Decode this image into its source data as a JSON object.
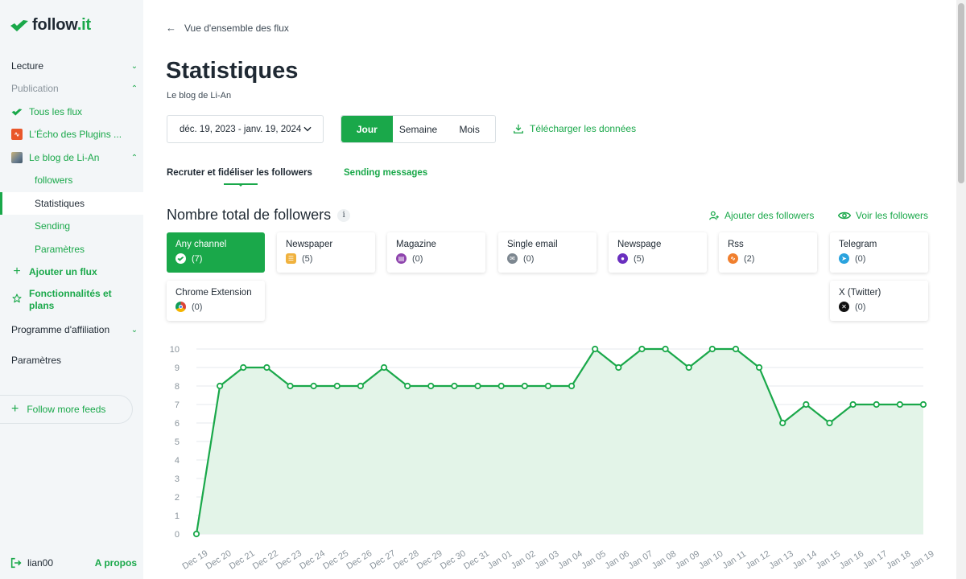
{
  "brand": {
    "logo_main": "follow",
    "logo_dot": ".it"
  },
  "sidebar": {
    "items": [
      {
        "label": "Lecture"
      },
      {
        "label": "Publication"
      },
      {
        "label": "Tous les flux"
      },
      {
        "label": "L'Écho des Plugins ..."
      },
      {
        "label": "Le blog de Li-An"
      },
      {
        "label": "followers"
      },
      {
        "label": "Statistiques"
      },
      {
        "label": "Sending"
      },
      {
        "label": "Paramètres"
      },
      {
        "label": "Ajouter un flux"
      },
      {
        "label": "Fonctionnalités et plans"
      },
      {
        "label": "Programme d'affiliation"
      },
      {
        "label": "Paramètres"
      }
    ],
    "follow_more": "Follow more feeds",
    "user": "lian00",
    "about": "A propos"
  },
  "header": {
    "back_link": "Vue d'ensemble des flux",
    "title": "Statistiques",
    "subtitle": "Le blog de Li-An"
  },
  "controls": {
    "date_range": "déc. 19, 2023 - janv. 19, 2024",
    "periods": [
      "Jour",
      "Semaine",
      "Mois"
    ],
    "download": "Télécharger les données"
  },
  "tabs": [
    "Recruter et fidéliser les followers",
    "Sending messages"
  ],
  "section": {
    "title": "Nombre total de followers",
    "info": "i",
    "add_followers": "Ajouter des followers",
    "view_followers": "Voir les followers"
  },
  "channels": [
    {
      "name": "Any channel",
      "count": "(7)",
      "icon": "follow-it-icon",
      "color": "#1aa84a"
    },
    {
      "name": "Newspaper",
      "count": "(5)",
      "icon": "newspaper-icon",
      "color": "#f0b23e"
    },
    {
      "name": "Magazine",
      "count": "(0)",
      "icon": "magazine-icon",
      "color": "#8e44ad"
    },
    {
      "name": "Single email",
      "count": "(0)",
      "icon": "email-icon",
      "color": "#7d8790"
    },
    {
      "name": "Newspage",
      "count": "(5)",
      "icon": "globe-icon",
      "color": "#6a2fbf"
    },
    {
      "name": "Rss",
      "count": "(2)",
      "icon": "rss-icon",
      "color": "#f07f2e"
    },
    {
      "name": "Telegram",
      "count": "(0)",
      "icon": "telegram-icon",
      "color": "#2aa3de"
    },
    {
      "name": "Chrome Extension",
      "count": "(0)",
      "icon": "chrome-icon",
      "color": "#db4437"
    },
    {
      "name": "X (Twitter)",
      "count": "(0)",
      "icon": "x-icon",
      "color": "#111111"
    }
  ],
  "chart_data": {
    "type": "area",
    "x": [
      "Dec 19",
      "Dec 20",
      "Dec 21",
      "Dec 22",
      "Dec 23",
      "Dec 24",
      "Dec 25",
      "Dec 26",
      "Dec 27",
      "Dec 28",
      "Dec 29",
      "Dec 30",
      "Dec 31",
      "Jan 01",
      "Jan 02",
      "Jan 03",
      "Jan 04",
      "Jan 05",
      "Jan 06",
      "Jan 07",
      "Jan 08",
      "Jan 09",
      "Jan 10",
      "Jan 11",
      "Jan 12",
      "Jan 13",
      "Jan 14",
      "Jan 15",
      "Jan 16",
      "Jan 17",
      "Jan 18",
      "Jan 19"
    ],
    "values": [
      0,
      8,
      9,
      9,
      8,
      8,
      8,
      8,
      9,
      8,
      8,
      8,
      8,
      8,
      8,
      8,
      8,
      10,
      9,
      10,
      10,
      9,
      10,
      10,
      9,
      6,
      7,
      6,
      7,
      7,
      7,
      7
    ],
    "ylim": [
      0,
      10
    ],
    "yticks": [
      0,
      1,
      2,
      3,
      4,
      5,
      6,
      7,
      8,
      9,
      10
    ],
    "grid": true,
    "line_color": "#1aa84a",
    "fill_color": "#e3f4e8"
  },
  "colors": {
    "accent": "#1aa84a"
  }
}
